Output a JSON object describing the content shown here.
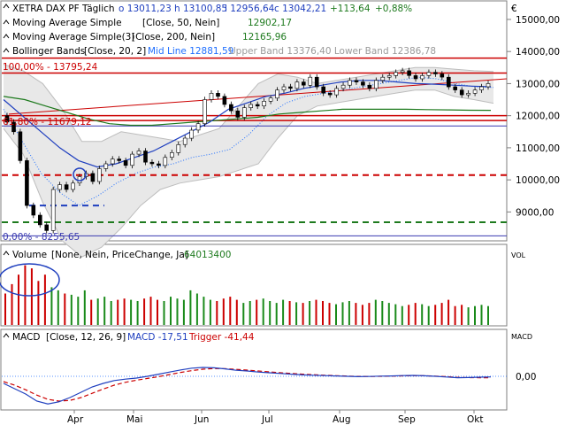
{
  "colors": {
    "bg": "#ffffff",
    "frame": "#7f7f7f",
    "sma50": "#1f3fbf",
    "sma200": "#1e7a1e",
    "mid": "#1f6fff",
    "bands": "#bdbdbd",
    "resist": "#cc0000",
    "support": "#1e7a1e",
    "fib": "#3a3ab0",
    "up": "#1a7a1a",
    "down": "#cc0000",
    "volume": "#cc0000",
    "volume_up": "#1a8a1a",
    "macd": "#1f3fbf",
    "trigger": "#cc0000",
    "text_main": "#000000",
    "text_label": "#1f3fbf",
    "text_value": "#1e7a1e",
    "text_gray": "#9a9a9a"
  },
  "header": {
    "title": "XETRA DAX PF",
    "period": "Täglich",
    "o": "o 13011,23",
    "h": "h 13100,85",
    "l": "l 12956,64",
    "c": "c 13042,21",
    "change": "+113,64",
    "change_pct": "+0,88%",
    "currency": "€"
  },
  "indicators": [
    {
      "label": "Moving Average Simple",
      "params": "[Close, 50, Nein]",
      "value": "12902,17",
      "color": "#1f3fbf"
    },
    {
      "label": "Moving Average Simple(3)",
      "params": "[Close, 200, Nein]",
      "value": "12165,96",
      "color": "#1e7a1e"
    },
    {
      "label": "Bollinger Bands",
      "params": "[Close, 20, 2]",
      "value": "Mid Line 12881,59",
      "extra": "Upper Band 13376,40 Lower Band 12386,78",
      "color": "#1f6fff"
    }
  ],
  "fib_labels": [
    {
      "text": "100,00% - 13795,24"
    },
    {
      "text": "61,80% - 11679,12"
    },
    {
      "text": "0,00% - 8255,65"
    }
  ],
  "volume_panel": {
    "label": "Volume",
    "params": "[None, Nein, PriceChange, Ja]",
    "value": "64013400",
    "axis": "VOL"
  },
  "macd_panel": {
    "label": "MACD",
    "params": "[Close, 12, 26, 9]",
    "macd": "MACD -17,51",
    "trigger": "Trigger -41,44",
    "axis": "MACD",
    "zero_label": "0,00"
  },
  "chart_data": {
    "type": "line",
    "title": "XETRA DAX PF",
    "x_labels": [
      "Apr",
      "Mai",
      "Jun",
      "Jul",
      "Aug",
      "Sep",
      "Okt"
    ],
    "y_ticks": [
      9000,
      10000,
      11000,
      12000,
      13000,
      14000,
      15000
    ],
    "y_tick_labels": [
      "9000,00",
      "10000,00",
      "11000,00",
      "12000,00",
      "13000,00",
      "14000,00",
      "15000,00"
    ],
    "ylim": [
      8100,
      15550
    ],
    "closes": [
      11800,
      11500,
      10600,
      9200,
      8900,
      8600,
      8420,
      9700,
      9850,
      9700,
      9900,
      10100,
      10200,
      9950,
      10350,
      10500,
      10650,
      10600,
      10450,
      10800,
      10900,
      10550,
      10500,
      10450,
      10700,
      10850,
      11100,
      11300,
      11550,
      11750,
      12500,
      12700,
      12600,
      12350,
      12150,
      11950,
      12250,
      12350,
      12300,
      12450,
      12550,
      12800,
      12900,
      12850,
      13050,
      12950,
      13200,
      12900,
      12700,
      12650,
      12850,
      12950,
      13100,
      13050,
      12950,
      12850,
      13100,
      13200,
      13250,
      13350,
      13400,
      13250,
      13150,
      13250,
      13350,
      13300,
      13200,
      12900,
      12800,
      12650,
      12700,
      12800,
      12900,
      13000
    ],
    "sma50": [
      12500,
      12000,
      11500,
      11000,
      10600,
      10400,
      10500,
      10700,
      10900,
      11200,
      11500,
      11800,
      12200,
      12400,
      12600,
      12700,
      12850,
      12950,
      13050,
      13100,
      13100,
      13050,
      13000,
      12980,
      12950,
      12920,
      12900
    ],
    "sma200": [
      12600,
      12500,
      12300,
      12100,
      11900,
      11750,
      11700,
      11700,
      11750,
      11800,
      11850,
      11900,
      11950,
      12050,
      12100,
      12150,
      12200,
      12200,
      12200,
      12200,
      12190,
      12180,
      12170,
      12166
    ],
    "mid_line": [
      12200,
      11200,
      10200,
      9600,
      9200,
      9500,
      9900,
      10200,
      10400,
      10500,
      10700,
      10800,
      10950,
      11400,
      12000,
      12400,
      12600,
      12700,
      12800,
      12900,
      13000,
      13100,
      13200,
      13150,
      13000,
      12900,
      12880
    ],
    "upper_band": [
      13600,
      13400,
      13000,
      12200,
      11200,
      11200,
      11500,
      11400,
      11300,
      11200,
      11400,
      11600,
      12300,
      13000,
      13300,
      13200,
      13000,
      13100,
      13200,
      13300,
      13400,
      13500,
      13500,
      13450,
      13400,
      13376
    ],
    "lower_band": [
      11600,
      10800,
      9300,
      8100,
      7600,
      7900,
      8500,
      9200,
      9700,
      9900,
      10000,
      10100,
      10300,
      10500,
      11300,
      12000,
      12300,
      12400,
      12500,
      12600,
      12700,
      12800,
      12800,
      12600,
      12500,
      12387
    ],
    "levels": {
      "fib_100": 13795.24,
      "fib_618": 11679.12,
      "fib_0": 8255.65,
      "resistance": [
        13330,
        12000,
        11850
      ],
      "support_red_dashed": 10150,
      "support_blue_dashed": 9200,
      "support_green_dashed": 8680
    },
    "volume": [
      50,
      65,
      80,
      95,
      90,
      70,
      80,
      60,
      55,
      50,
      48,
      45,
      55,
      40,
      42,
      45,
      38,
      40,
      42,
      40,
      38,
      42,
      45,
      40,
      38,
      45,
      42,
      40,
      55,
      50,
      45,
      40,
      38,
      42,
      45,
      40,
      35,
      38,
      40,
      42,
      38,
      35,
      40,
      38,
      36,
      35,
      38,
      40,
      38,
      35,
      33,
      36,
      38,
      35,
      32,
      35,
      40,
      38,
      35,
      33,
      30,
      32,
      35,
      33,
      30,
      32,
      35,
      40,
      30,
      32,
      28,
      30,
      32,
      30
    ],
    "macd": [
      -200,
      -350,
      -500,
      -700,
      -780,
      -720,
      -600,
      -450,
      -300,
      -200,
      -120,
      -80,
      -50,
      0,
      60,
      120,
      180,
      230,
      250,
      240,
      210,
      170,
      150,
      120,
      100,
      80,
      60,
      40,
      30,
      20,
      10,
      0,
      -10,
      -5,
      5,
      10,
      20,
      25,
      15,
      0,
      -20,
      -40,
      -35,
      -25,
      -18
    ],
    "trigger": [
      -150,
      -250,
      -380,
      -530,
      -650,
      -700,
      -680,
      -600,
      -480,
      -360,
      -250,
      -170,
      -110,
      -60,
      -10,
      50,
      110,
      160,
      200,
      220,
      215,
      195,
      175,
      150,
      125,
      100,
      80,
      60,
      45,
      30,
      18,
      8,
      -2,
      -5,
      0,
      5,
      12,
      18,
      15,
      5,
      -10,
      -30,
      -38,
      -40,
      -41
    ]
  }
}
